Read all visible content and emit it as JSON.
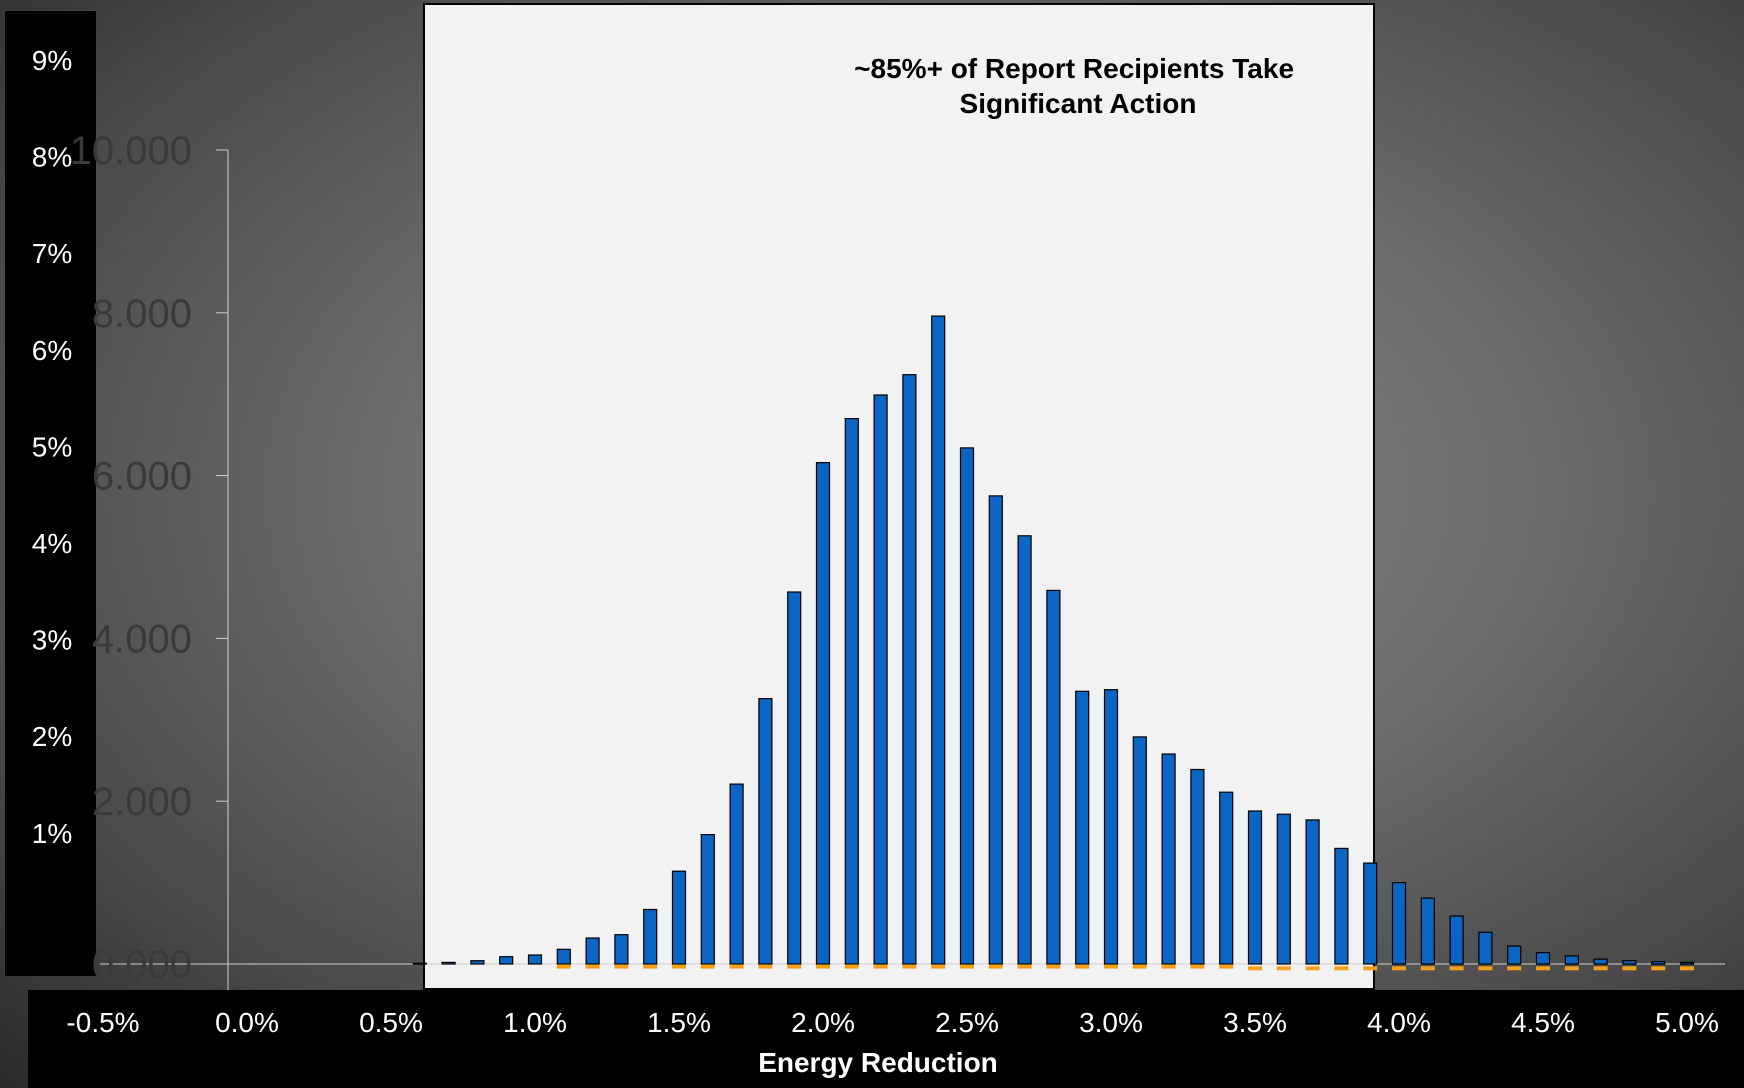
{
  "chart_data": {
    "type": "bar",
    "title": "~85%+ of Report Recipients Take\nSignificant Action",
    "title_lines": [
      "~85%+ of Report Recipients Take",
      "Significant Action"
    ],
    "xlabel": "Energy Reduction",
    "x_ticks": [
      "-0.5%",
      "0.0%",
      "0.5%",
      "1.0%",
      "1.5%",
      "2.0%",
      "2.5%",
      "3.0%",
      "3.5%",
      "4.0%",
      "4.5%",
      "5.0%"
    ],
    "xlim": [
      -0.5,
      5.0
    ],
    "y_ticks_left": [
      "9%",
      "8%",
      "7%",
      "6%",
      "5%",
      "4%",
      "3%",
      "2%",
      "1%"
    ],
    "y_ticks_faint": [
      "0.000",
      "2.000",
      "4.000",
      "6.000",
      "8.000",
      "10.000"
    ],
    "ylim": [
      0,
      10
    ],
    "series": [
      {
        "color": "#0a66c2",
        "x": [
          0.6,
          0.7,
          0.8,
          0.9,
          1.0,
          1.1,
          1.2,
          1.3,
          1.4,
          1.5,
          1.6,
          1.7,
          1.8,
          1.9,
          2.0,
          2.1,
          2.2,
          2.3,
          2.4,
          2.5,
          2.6,
          2.7,
          2.8,
          2.9,
          3.0,
          3.1,
          3.2,
          3.3,
          3.4,
          3.5,
          3.6,
          3.7,
          3.8,
          3.9,
          4.0,
          4.1,
          4.2,
          4.3,
          4.4,
          4.5,
          4.6,
          4.7,
          4.8,
          4.9,
          5.0
        ],
        "values": [
          0.01,
          0.02,
          0.04,
          0.09,
          0.11,
          0.18,
          0.32,
          0.36,
          0.67,
          1.14,
          1.59,
          2.21,
          3.26,
          4.57,
          6.16,
          6.7,
          6.99,
          7.24,
          7.96,
          6.34,
          5.75,
          5.26,
          4.59,
          3.35,
          3.37,
          2.79,
          2.58,
          2.39,
          2.11,
          1.88,
          1.84,
          1.77,
          1.42,
          1.24,
          1.0,
          0.81,
          0.59,
          0.39,
          0.22,
          0.14,
          0.1,
          0.06,
          0.04,
          0.03,
          0.02
        ]
      },
      {
        "color": "#f5a01a",
        "style": "dashed",
        "x": [
          1.1,
          1.2,
          1.3,
          1.4,
          1.5,
          1.6,
          1.7,
          1.8,
          1.9,
          2.0,
          2.1,
          2.2,
          2.3,
          2.4,
          2.5,
          2.6,
          2.7,
          2.8,
          2.9,
          3.0,
          3.1,
          3.2,
          3.3,
          3.4,
          3.5,
          3.6,
          3.7,
          3.8,
          3.9,
          4.0,
          4.1,
          4.2,
          4.3,
          4.4,
          4.5,
          4.6,
          4.7,
          4.8,
          4.9,
          5.0
        ],
        "values": [
          -0.02,
          -0.02,
          -0.02,
          -0.02,
          -0.02,
          -0.02,
          -0.02,
          -0.02,
          -0.02,
          -0.02,
          -0.02,
          -0.02,
          -0.02,
          -0.02,
          -0.02,
          -0.02,
          -0.02,
          -0.02,
          -0.02,
          -0.02,
          -0.02,
          -0.02,
          -0.02,
          -0.02,
          -0.04,
          -0.04,
          -0.04,
          -0.04,
          -0.04,
          -0.04,
          -0.04,
          -0.04,
          -0.04,
          -0.04,
          -0.04,
          -0.04,
          -0.04,
          -0.04,
          -0.04,
          -0.04
        ]
      }
    ],
    "legend": "none",
    "grid": false,
    "colors": {
      "bar": "#0a66c2",
      "bar_outline": "#000000",
      "dashed_line": "#f5a01a",
      "plot_panel": "#f2f2f2",
      "label_panels": "#000000"
    }
  }
}
